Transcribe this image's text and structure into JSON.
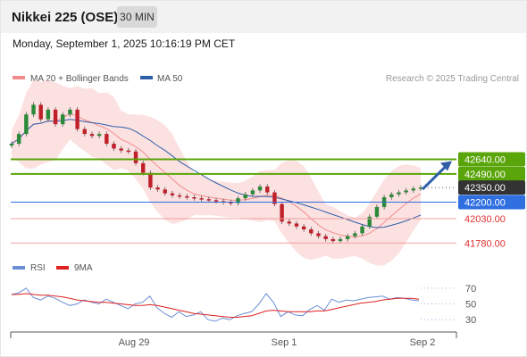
{
  "header": {
    "title": "Nikkei 225 (OSE)",
    "timeframe": "30 MIN",
    "datetime": "Monday, September 1, 2025 10:16:19 PM CET"
  },
  "legend": {
    "items": [
      {
        "label": "MA 20 + Bollinger Bands",
        "color": "#f28c8c"
      },
      {
        "label": "MA 50",
        "color": "#2e5fa8"
      }
    ],
    "credit": "Research © 2025 Trading Central"
  },
  "chart_data": {
    "type": "candlestick",
    "x_ticks": [
      "Aug 29",
      "Sep 1",
      "Sep 2"
    ],
    "ylim": [
      41700,
      43350
    ],
    "levels": [
      {
        "value": 42640.0,
        "label": "42640.00",
        "style": "resistance",
        "color": "#5aa50a",
        "text_color": "#ffffff"
      },
      {
        "value": 42490.0,
        "label": "42490.00",
        "style": "resistance",
        "color": "#5aa50a",
        "text_color": "#ffffff"
      },
      {
        "value": 42350.0,
        "label": "42350.00",
        "style": "last",
        "color": "#333333",
        "text_color": "#ffffff"
      },
      {
        "value": 42200.0,
        "label": "42200.00",
        "style": "pivot",
        "color": "#2f6fe0",
        "text_color": "#ffffff"
      },
      {
        "value": 42030.0,
        "label": "42030.00",
        "style": "support",
        "color": "#e03030",
        "text_color": "#e03030"
      },
      {
        "value": 41780.0,
        "label": "41780.00",
        "style": "support",
        "color": "#e03030",
        "text_color": "#e03030"
      }
    ],
    "close": [
      42800,
      42900,
      43100,
      43200,
      43050,
      43150,
      43000,
      43100,
      43150,
      42950,
      42900,
      42880,
      42900,
      42800,
      42750,
      42730,
      42720,
      42600,
      42500,
      42350,
      42330,
      42290,
      42270,
      42260,
      42250,
      42240,
      42230,
      42220,
      42210,
      42200,
      42190,
      42240,
      42280,
      42320,
      42360,
      42300,
      42180,
      42000,
      41980,
      41950,
      41920,
      41880,
      41850,
      41820,
      41800,
      41820,
      41850,
      41880,
      41950,
      42050,
      42150,
      42250,
      42280,
      42300,
      42320,
      42340,
      42350
    ]
  },
  "rsi_panel": {
    "legend": [
      {
        "label": "RSI",
        "color": "#6b8fd6"
      },
      {
        "label": "9MA",
        "color": "#e02020"
      }
    ],
    "y_ticks": [
      "70",
      "50",
      "30"
    ],
    "ylim": [
      20,
      80
    ],
    "rsi": [
      62,
      64,
      70,
      58,
      55,
      60,
      57,
      52,
      48,
      50,
      55,
      52,
      50,
      56,
      52,
      48,
      44,
      50,
      52,
      60,
      45,
      38,
      33,
      40,
      34,
      36,
      40,
      30,
      28,
      32,
      30,
      35,
      38,
      40,
      50,
      63,
      52,
      34,
      40,
      36,
      35,
      43,
      48,
      42,
      56,
      52,
      55,
      54,
      56,
      58,
      59,
      60,
      56,
      58,
      57,
      55,
      54
    ],
    "ma9": [
      62,
      62,
      63,
      62,
      61,
      61,
      60,
      59,
      57,
      55,
      54,
      53,
      52,
      52,
      51,
      50,
      49,
      48,
      48,
      49,
      48,
      46,
      44,
      42,
      40,
      38,
      37,
      36,
      35,
      34,
      33,
      33,
      34,
      35,
      38,
      41,
      42,
      41,
      40,
      40,
      40,
      40,
      41,
      41,
      43,
      45,
      47,
      49,
      51,
      52,
      53,
      55,
      56,
      57,
      57,
      57,
      56
    ]
  }
}
